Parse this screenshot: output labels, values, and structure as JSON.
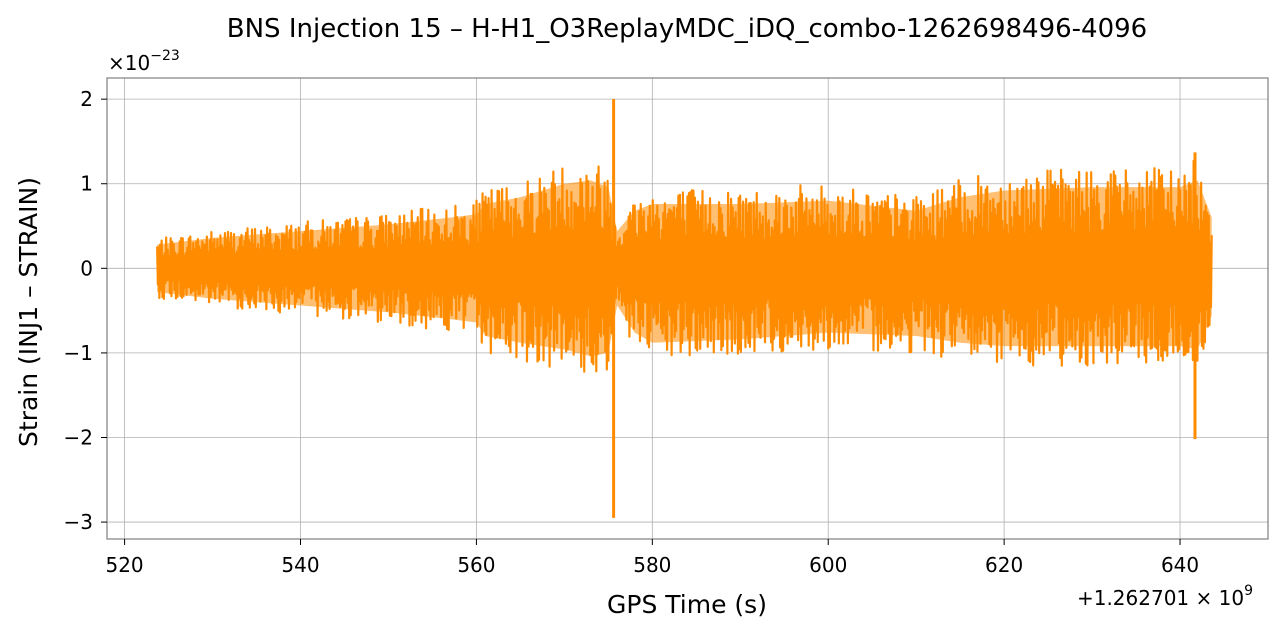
{
  "chart_data": {
    "type": "line",
    "title": "BNS Injection 15 – H-H1_O3ReplayMDC_iDQ_combo-1262698496-4096",
    "xlabel": "GPS Time (s)",
    "ylabel": "Strain (INJ1 – STRAIN)",
    "x_offset_label": "+1.262701 × 10",
    "x_offset_exponent": "9",
    "y_scale_label": "×10",
    "y_scale_exponent": "−23",
    "xlim": [
      518,
      650
    ],
    "ylim": [
      -3.2,
      2.25
    ],
    "x_ticks": [
      520,
      540,
      560,
      580,
      600,
      620,
      640
    ],
    "x_tick_labels": [
      "520",
      "540",
      "560",
      "580",
      "600",
      "620",
      "640"
    ],
    "y_ticks": [
      -3,
      -2,
      -1,
      0,
      1,
      2
    ],
    "y_tick_labels": [
      "−3",
      "−2",
      "−1",
      "0",
      "1",
      "2"
    ],
    "grid": true,
    "color": "#ff8c00",
    "series": [
      {
        "x_range": [
          523.7,
          643.6
        ],
        "envelope": {
          "x": [
            523.7,
            530,
            540,
            550,
            557,
            560,
            561,
            565,
            570,
            573,
            575,
            576,
            578,
            580,
            590,
            600,
            610,
            615,
            620,
            630,
            640,
            642,
            643.6
          ],
          "upper": [
            0.35,
            0.45,
            0.55,
            0.65,
            0.75,
            0.8,
            0.95,
            1.05,
            1.25,
            1.3,
            1.2,
            0.55,
            0.85,
            0.95,
            0.95,
            1.0,
            0.85,
            1.05,
            1.15,
            1.2,
            1.2,
            1.3,
            0.75
          ],
          "lower": [
            -0.35,
            -0.45,
            -0.55,
            -0.65,
            -0.75,
            -0.8,
            -1.0,
            -1.1,
            -1.2,
            -1.3,
            -1.25,
            -0.55,
            -0.95,
            -1.1,
            -1.05,
            -0.95,
            -1.0,
            -1.1,
            -1.15,
            -1.15,
            -1.15,
            -1.2,
            -0.7
          ]
        },
        "spikes": [
          {
            "x": 575.6,
            "min": -2.95,
            "max": 2.0
          },
          {
            "x": 641.7,
            "min": -2.02,
            "max": 1.37
          }
        ]
      }
    ]
  }
}
